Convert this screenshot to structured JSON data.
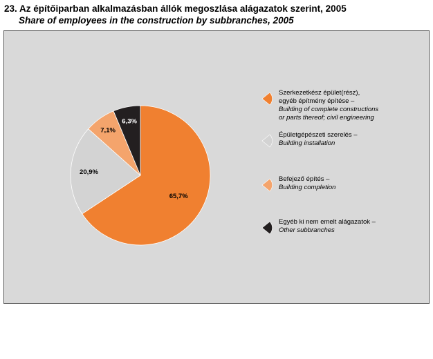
{
  "title": {
    "hu": "23. Az építőiparban alkalmazásban állók megoszlása alágazatok szerint, 2005",
    "en": "Share of employees in the construction by subbranches, 2005"
  },
  "chart_data": {
    "type": "pie",
    "title": "23. Az építőiparban alkalmazásban állók megoszlása alágazatok szerint, 2005",
    "subtitle": "Share of employees in the construction by subbranches, 2005",
    "unit": "%",
    "start": "12 o'clock",
    "direction": "clockwise",
    "legend_position": "right",
    "background_color": "#d9d9d9",
    "slices": [
      {
        "label_hu": "Szerkezetkész épület(rész),\negyéb építmény építése –",
        "label_en": "Building of complete constructions\nor parts thereof; civil engineering",
        "value": 65.7,
        "value_label": "65,7%",
        "color": "#f08030",
        "label_color": "#000000"
      },
      {
        "label_hu": "Épületgépészeti szerelés –",
        "label_en": "Building installation",
        "value": 20.9,
        "value_label": "20,9%",
        "color": "#d3d3d3",
        "label_color": "#000000"
      },
      {
        "label_hu": "Befejező építés –",
        "label_en": "Building completion",
        "value": 7.1,
        "value_label": "7,1%",
        "color": "#f4a46c",
        "label_color": "#000000"
      },
      {
        "label_hu": "Egyéb ki nem emelt alágazatok –",
        "label_en": "Other subbranches",
        "value": 6.3,
        "value_label": "6,3%",
        "color": "#231f20",
        "label_color": "#ffffff"
      }
    ]
  }
}
